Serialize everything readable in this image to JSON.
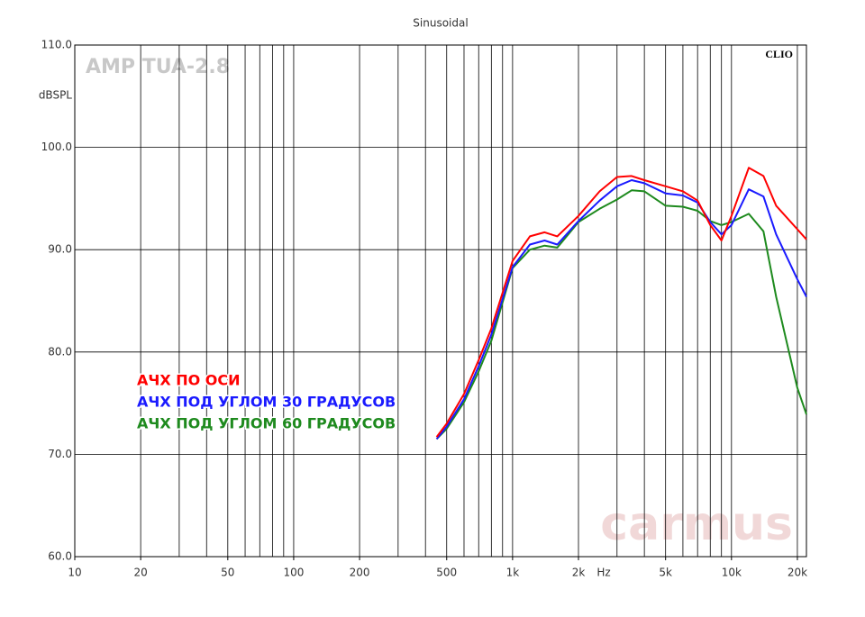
{
  "chart_data": {
    "type": "line",
    "title": "Sinusoidal",
    "ylabel": "dBSPL",
    "xlabel": "Hz",
    "watermark_left": "AMP TUA-2.8",
    "watermark_right": "CLIO",
    "watermark_logo": "carmus",
    "log_x": true,
    "grid": true,
    "xlim": [
      10,
      22000
    ],
    "ylim": [
      60,
      110
    ],
    "xticks": [
      10,
      20,
      50,
      100,
      200,
      500,
      {
        "value": 1000,
        "label": "1k"
      },
      {
        "value": 2000,
        "label": "2k"
      },
      {
        "value": 5000,
        "label": "5k"
      },
      {
        "value": 10000,
        "label": "10k"
      },
      {
        "value": 20000,
        "label": "20k"
      }
    ],
    "xgrid": [
      20,
      30,
      40,
      50,
      60,
      70,
      80,
      90,
      100,
      200,
      300,
      400,
      500,
      600,
      700,
      800,
      900,
      1000,
      2000,
      3000,
      4000,
      5000,
      6000,
      7000,
      8000,
      9000,
      10000,
      20000
    ],
    "yticks": [
      {
        "value": 60,
        "label": "60.0"
      },
      {
        "value": 70,
        "label": "70.0"
      },
      {
        "value": 80,
        "label": "80.0"
      },
      {
        "value": 90,
        "label": "90.0"
      },
      {
        "value": 100,
        "label": "100.0"
      },
      {
        "value": 110,
        "label": "110.0"
      }
    ],
    "x": [
      450,
      500,
      600,
      700,
      800,
      1000,
      1200,
      1400,
      1600,
      2000,
      2500,
      3000,
      3500,
      4000,
      5000,
      6000,
      7000,
      8000,
      9000,
      10000,
      12000,
      14000,
      16000,
      20000,
      22000
    ],
    "series": [
      {
        "name": "АЧХ ПО ОСИ",
        "color": "#ff0000",
        "values": [
          71.7,
          73.0,
          75.9,
          79.2,
          82.3,
          88.9,
          91.3,
          91.7,
          91.3,
          93.3,
          95.7,
          97.1,
          97.2,
          96.8,
          96.2,
          95.7,
          94.8,
          92.4,
          90.9,
          93.3,
          98.0,
          97.2,
          94.3,
          92.0,
          91.0
        ]
      },
      {
        "name": "АЧХ ПОД УГЛОМ 30 ГРАДУСОВ",
        "color": "#1a1aff",
        "values": [
          71.5,
          72.7,
          75.4,
          78.6,
          81.7,
          88.3,
          90.5,
          90.9,
          90.5,
          92.8,
          94.8,
          96.2,
          96.8,
          96.5,
          95.5,
          95.3,
          94.6,
          92.7,
          91.5,
          92.4,
          95.9,
          95.2,
          91.5,
          87.1,
          85.4
        ]
      },
      {
        "name": "АЧХ ПОД УГЛОМ 60 ГРАДУСОВ",
        "color": "#1e8a1e",
        "values": [
          71.5,
          72.5,
          75.1,
          78.1,
          81.1,
          88.2,
          90.0,
          90.4,
          90.2,
          92.7,
          94.0,
          94.9,
          95.8,
          95.7,
          94.3,
          94.2,
          93.8,
          92.8,
          92.4,
          92.7,
          93.5,
          91.8,
          85.4,
          76.5,
          73.9
        ]
      }
    ]
  }
}
